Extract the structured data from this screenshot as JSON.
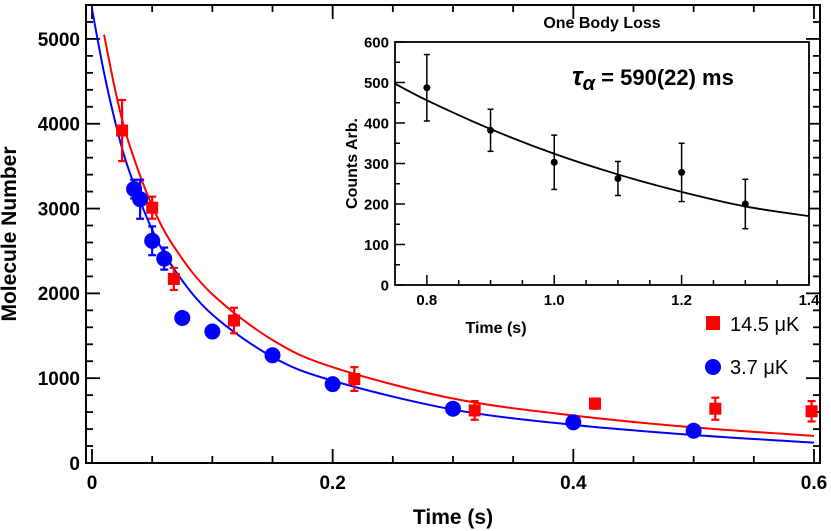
{
  "chart_data": [
    {
      "type": "scatter",
      "title": "",
      "xlabel": "Time (s)",
      "ylabel": "Molecule Number",
      "xlim": [
        -0.005,
        0.605
      ],
      "ylim": [
        0,
        5400
      ],
      "xticks": [
        0,
        0.2,
        0.4,
        0.6
      ],
      "xtick_labels": [
        "0",
        "0.2",
        "0.4",
        "0.6"
      ],
      "yticks": [
        0,
        1000,
        2000,
        3000,
        4000,
        5000
      ],
      "ytick_labels": [
        "0",
        "1000",
        "2000",
        "3000",
        "4000",
        "5000"
      ],
      "grid": false,
      "legend_position": "bottom-right",
      "series": [
        {
          "name": "14.5 μK",
          "marker": "square",
          "color": "#ff0000",
          "x": [
            0.025,
            0.05,
            0.068,
            0.118,
            0.218,
            0.318,
            0.418,
            0.518,
            0.598
          ],
          "y": [
            3920,
            3010,
            2170,
            1680,
            990,
            620,
            700,
            640,
            610
          ],
          "yerr": [
            360,
            130,
            130,
            150,
            140,
            110,
            60,
            130,
            120
          ]
        },
        {
          "name": "3.7 μK",
          "marker": "circle",
          "color": "#0000ff",
          "x": [
            0.035,
            0.04,
            0.05,
            0.06,
            0.075,
            0.1,
            0.15,
            0.2,
            0.3,
            0.4,
            0.5
          ],
          "y": [
            3230,
            3110,
            2620,
            2410,
            1710,
            1550,
            1270,
            930,
            640,
            480,
            380
          ],
          "yerr": [
            110,
            230,
            170,
            130,
            0,
            0,
            0,
            0,
            0,
            0,
            0
          ]
        }
      ],
      "fit_curves": [
        {
          "series": "14.5 μK",
          "color": "#ff0000",
          "x": [
            0.01,
            0.02,
            0.03,
            0.05,
            0.07,
            0.1,
            0.15,
            0.2,
            0.3,
            0.4,
            0.5,
            0.6
          ],
          "y": [
            5050,
            4350,
            3800,
            3030,
            2510,
            1990,
            1450,
            1130,
            760,
            560,
            420,
            320
          ]
        },
        {
          "series": "3.7 μK",
          "color": "#0000ff",
          "x": [
            0.0,
            0.01,
            0.02,
            0.03,
            0.05,
            0.07,
            0.1,
            0.15,
            0.2,
            0.3,
            0.4,
            0.5,
            0.6
          ],
          "y": [
            5350,
            4600,
            3980,
            3480,
            2750,
            2250,
            1750,
            1250,
            970,
            630,
            450,
            330,
            240
          ]
        }
      ]
    },
    {
      "type": "scatter",
      "title": "One Body Loss",
      "xlabel": "Time (s)",
      "ylabel": "Counts Arb.",
      "xlim": [
        0.75,
        1.4
      ],
      "ylim": [
        0,
        600
      ],
      "xticks": [
        0.8,
        1.0,
        1.2,
        1.4
      ],
      "xtick_labels": [
        "0.8",
        "1.0",
        "1.2",
        "1.4"
      ],
      "yticks": [
        0,
        100,
        200,
        300,
        400,
        500,
        600
      ],
      "ytick_labels": [
        "0",
        "100",
        "200",
        "300",
        "400",
        "500",
        "600"
      ],
      "grid": false,
      "annotation": {
        "symbol": "τ",
        "subscript": "α",
        "text": " = 590(22) ms"
      },
      "series": [
        {
          "name": "",
          "marker": "circle",
          "color": "#000000",
          "x": [
            0.8,
            0.9,
            1.0,
            1.1,
            1.2,
            1.3
          ],
          "y": [
            487,
            382,
            303,
            263,
            278,
            200
          ],
          "yerr": [
            82,
            52,
            67,
            42,
            72,
            61
          ]
        }
      ],
      "fit_curves": [
        {
          "series": "",
          "color": "#000000",
          "x": [
            0.75,
            0.8,
            0.9,
            1.0,
            1.1,
            1.2,
            1.3,
            1.4
          ],
          "y": [
            497,
            456,
            385,
            324,
            273,
            230,
            194,
            170
          ]
        }
      ]
    }
  ]
}
